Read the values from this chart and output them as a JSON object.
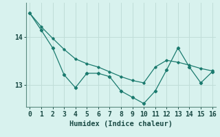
{
  "xlabel": "Humidex (Indice chaleur)",
  "background_color": "#d8f2ee",
  "line_color": "#1a7a6e",
  "grid_color": "#c0ddd8",
  "x": [
    0,
    1,
    2,
    3,
    4,
    5,
    6,
    7,
    8,
    9,
    10,
    11,
    12,
    13,
    14,
    15,
    16
  ],
  "y_zigzag": [
    14.5,
    14.15,
    13.78,
    13.22,
    12.95,
    13.25,
    13.25,
    13.18,
    12.88,
    12.75,
    12.62,
    12.88,
    13.32,
    13.78,
    13.38,
    13.05,
    13.28
  ],
  "y_smooth": [
    14.5,
    14.22,
    13.98,
    13.75,
    13.55,
    13.45,
    13.38,
    13.28,
    13.18,
    13.1,
    13.05,
    13.38,
    13.52,
    13.48,
    13.42,
    13.35,
    13.3
  ],
  "ylim_bottom": 12.55,
  "ylim_top": 14.72,
  "yticks": [
    13,
    14
  ],
  "xticks": [
    0,
    1,
    2,
    3,
    4,
    5,
    6,
    7,
    8,
    9,
    10,
    11,
    12,
    13,
    14,
    15,
    16
  ],
  "xlim_left": -0.3,
  "xlim_right": 16.3
}
